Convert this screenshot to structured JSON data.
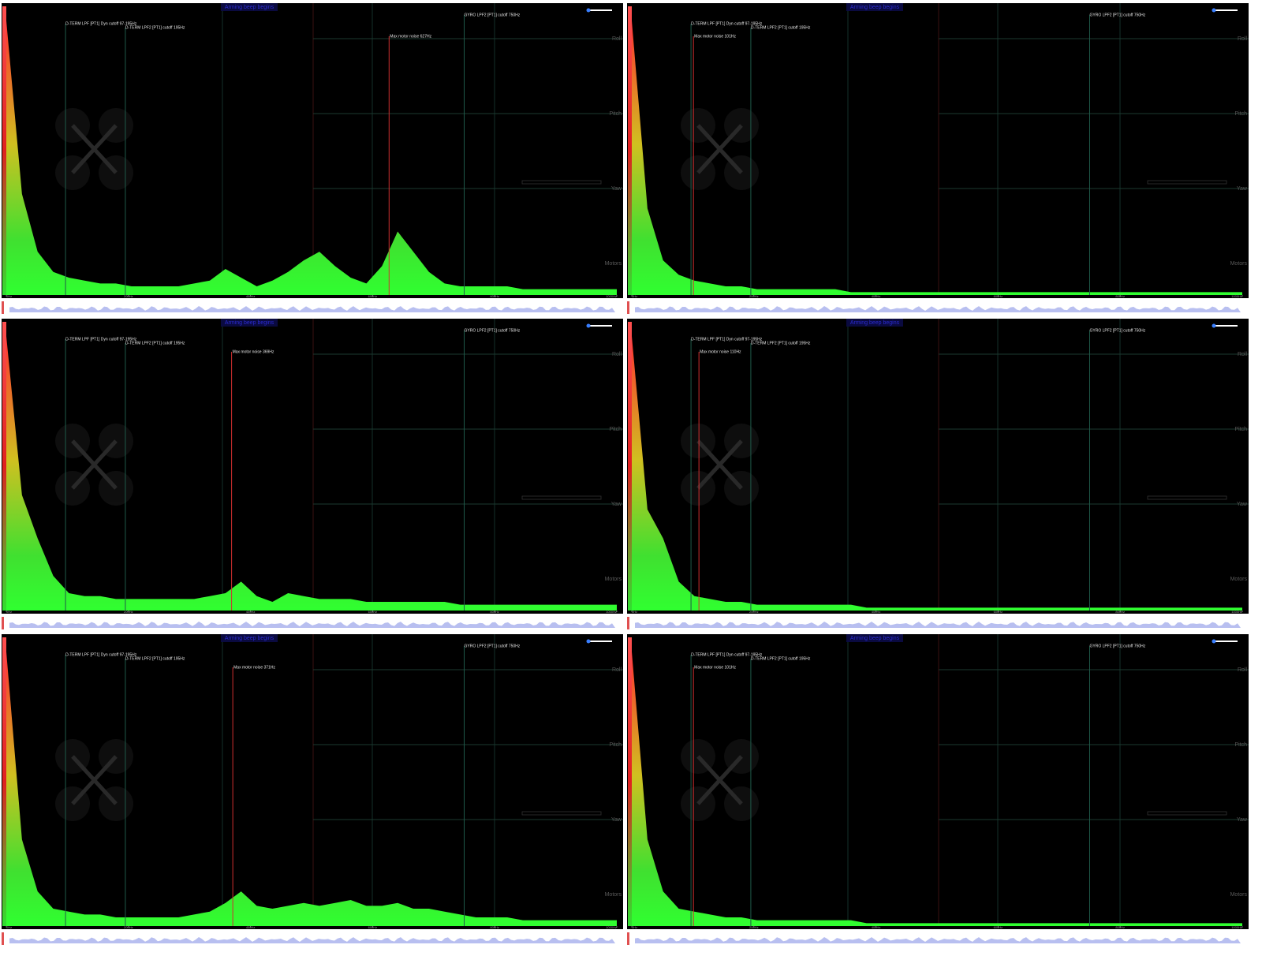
{
  "x_axis": {
    "xlim": [
      0,
      1000
    ],
    "xticks": [
      {
        "value": 0,
        "label": "0Hz"
      },
      {
        "value": 200,
        "label": "200Hz"
      },
      {
        "value": 400,
        "label": "400Hz"
      },
      {
        "value": 600,
        "label": "600Hz"
      },
      {
        "value": 800,
        "label": "800Hz"
      },
      {
        "value": 1000,
        "label": "1000Hz"
      }
    ]
  },
  "spectrum_ylim": [
    0,
    100
  ],
  "trace_labels": [
    "Roll",
    "Pitch",
    "Yaw",
    "Motors"
  ],
  "panels": [
    {
      "title": "Arming beep begins",
      "markers": [
        {
          "label": "D-TERM LPF [PT1] Dyn cutoff 97-195Hz",
          "freq": 97
        },
        {
          "label": "D-TERM LPF2 [PT1] cutoff 195Hz",
          "freq": 195
        },
        {
          "label": "GYRO LPF2 [PT1] cutoff 750Hz",
          "freq": 750
        }
      ],
      "motor_noise": {
        "label": "Max motor noise 627Hz",
        "freq": 627
      },
      "spectrum": [
        95,
        35,
        15,
        8,
        6,
        5,
        4,
        4,
        3,
        3,
        3,
        3,
        4,
        5,
        9,
        6,
        3,
        5,
        8,
        12,
        15,
        10,
        6,
        4,
        10,
        22,
        15,
        8,
        4,
        3,
        3,
        3,
        3,
        2,
        2,
        2,
        2,
        2,
        2,
        2
      ]
    },
    {
      "title": "Arming beep begins",
      "markers": [
        {
          "label": "D-TERM LPF [PT1] Dyn cutoff 97-195Hz",
          "freq": 97
        },
        {
          "label": "D-TERM LPF2 [PT1] cutoff 195Hz",
          "freq": 195
        },
        {
          "label": "GYRO LPF2 [PT1] cutoff 750Hz",
          "freq": 750
        }
      ],
      "motor_noise": {
        "label": "Max motor noise 101Hz",
        "freq": 101
      },
      "spectrum": [
        95,
        30,
        12,
        7,
        5,
        4,
        3,
        3,
        2,
        2,
        2,
        2,
        2,
        2,
        1,
        1,
        1,
        1,
        1,
        1,
        1,
        1,
        1,
        1,
        1,
        1,
        1,
        1,
        1,
        1,
        1,
        1,
        1,
        1,
        1,
        1,
        1,
        1,
        1,
        1
      ]
    },
    {
      "title": "Arming beep begins",
      "markers": [
        {
          "label": "D-TERM LPF [PT1] Dyn cutoff 97-195Hz",
          "freq": 97
        },
        {
          "label": "D-TERM LPF2 [PT1] cutoff 195Hz",
          "freq": 195
        },
        {
          "label": "GYRO LPF2 [PT1] cutoff 750Hz",
          "freq": 750
        }
      ],
      "motor_noise": {
        "label": "Max motor noise 369Hz",
        "freq": 369
      },
      "spectrum": [
        95,
        40,
        25,
        12,
        6,
        5,
        5,
        4,
        4,
        4,
        4,
        4,
        4,
        5,
        6,
        10,
        5,
        3,
        6,
        5,
        4,
        4,
        4,
        3,
        3,
        3,
        3,
        3,
        3,
        2,
        2,
        2,
        2,
        2,
        2,
        2,
        2,
        2,
        2,
        2
      ]
    },
    {
      "title": "Arming beep begins",
      "markers": [
        {
          "label": "D-TERM LPF [PT1] Dyn cutoff 97-195Hz",
          "freq": 97
        },
        {
          "label": "D-TERM LPF2 [PT1] cutoff 195Hz",
          "freq": 195
        },
        {
          "label": "GYRO LPF2 [PT1] cutoff 750Hz",
          "freq": 750
        }
      ],
      "motor_noise": {
        "label": "Max motor noise 110Hz",
        "freq": 110
      },
      "spectrum": [
        95,
        35,
        25,
        10,
        5,
        4,
        3,
        3,
        2,
        2,
        2,
        2,
        2,
        2,
        2,
        1,
        1,
        1,
        1,
        1,
        1,
        1,
        1,
        1,
        1,
        1,
        1,
        1,
        1,
        1,
        1,
        1,
        1,
        1,
        1,
        1,
        1,
        1,
        1,
        1
      ]
    },
    {
      "title": "Arming beep begins",
      "markers": [
        {
          "label": "D-TERM LPF [PT1] Dyn cutoff 97-195Hz",
          "freq": 97
        },
        {
          "label": "D-TERM LPF2 [PT1] cutoff 195Hz",
          "freq": 195
        },
        {
          "label": "GYRO LPF2 [PT1] cutoff 750Hz",
          "freq": 750
        }
      ],
      "motor_noise": {
        "label": "Max motor noise 371Hz",
        "freq": 371
      },
      "spectrum": [
        95,
        30,
        12,
        6,
        5,
        4,
        4,
        3,
        3,
        3,
        3,
        3,
        4,
        5,
        8,
        12,
        7,
        6,
        7,
        8,
        7,
        8,
        9,
        7,
        7,
        8,
        6,
        6,
        5,
        4,
        3,
        3,
        3,
        2,
        2,
        2,
        2,
        2,
        2,
        2
      ]
    },
    {
      "title": "Arming beep begins",
      "markers": [
        {
          "label": "D-TERM LPF [PT1] Dyn cutoff 97-195Hz",
          "freq": 97
        },
        {
          "label": "D-TERM LPF2 [PT1] cutoff 195Hz",
          "freq": 195
        },
        {
          "label": "GYRO LPF2 [PT1] cutoff 750Hz",
          "freq": 750
        }
      ],
      "motor_noise": {
        "label": "Max motor noise 101Hz",
        "freq": 101
      },
      "spectrum": [
        95,
        30,
        12,
        6,
        5,
        4,
        3,
        3,
        2,
        2,
        2,
        2,
        2,
        2,
        2,
        1,
        1,
        1,
        1,
        1,
        1,
        1,
        1,
        1,
        1,
        1,
        1,
        1,
        1,
        1,
        1,
        1,
        1,
        1,
        1,
        1,
        1,
        1,
        1,
        1
      ]
    }
  ]
}
